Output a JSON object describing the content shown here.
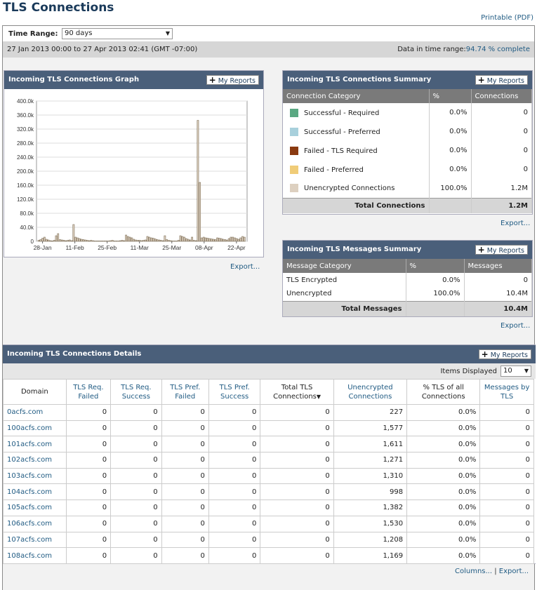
{
  "page": {
    "title": "TLS Connections",
    "printable": "Printable (PDF)"
  },
  "time_range": {
    "label": "Time Range:",
    "value": "90 days",
    "dates": "27 Jan 2013 00:00 to 27 Apr 2013 02:41 (GMT -07:00)",
    "data_label": "Data in time range:",
    "data_value": "94.74 % complete"
  },
  "my_reports": "My Reports",
  "export": "Export...",
  "graph": {
    "title": "Incoming TLS Connections Graph",
    "chart_data": {
      "type": "bar",
      "y_ticks": [
        "400.0k",
        "360.0k",
        "320.0k",
        "280.0k",
        "240.0k",
        "200.0k",
        "160.0k",
        "120.0k",
        "80.0k",
        "40.0k",
        "0"
      ],
      "x_ticks": [
        "28-Jan",
        "11-Feb",
        "25-Feb",
        "11-Mar",
        "25-Mar",
        "08-Apr",
        "22-Apr"
      ],
      "ylim": [
        0,
        400000
      ],
      "values": [
        3000,
        5000,
        9000,
        12000,
        6000,
        4000,
        2000,
        1500,
        3000,
        16000,
        22000,
        5000,
        4000,
        3000,
        2000,
        3000,
        4000,
        2000,
        48000,
        12000,
        10000,
        8000,
        6000,
        5000,
        4000,
        3000,
        2000,
        3000,
        2000,
        1000,
        1000,
        1000,
        1000,
        1000,
        1000,
        1000,
        1000,
        2000,
        3000,
        1000,
        1000,
        1000,
        2000,
        3000,
        2000,
        18000,
        14000,
        12000,
        10000,
        6000,
        4000,
        3000,
        3000,
        2000,
        3000,
        4000,
        14000,
        12000,
        10000,
        9000,
        7000,
        5000,
        4000,
        3000,
        2000,
        16000,
        5000,
        3000,
        2000,
        1000,
        1000,
        1000,
        3000,
        16000,
        14000,
        12000,
        8000,
        6000,
        4000,
        12000,
        3000,
        2000,
        345000,
        168000,
        10000,
        12000,
        10000,
        9000,
        8000,
        7000,
        6000,
        5000,
        10000,
        9000,
        8000,
        6000,
        5000,
        4000,
        8000,
        12000,
        12000,
        10000,
        8000,
        6000,
        10000,
        14000,
        12000
      ]
    }
  },
  "conn_summary": {
    "title": "Incoming TLS Connections Summary",
    "headers": [
      "Connection Category",
      "%",
      "Connections"
    ],
    "rows": [
      {
        "name": "Successful - Required",
        "pct": "0.0%",
        "count": "0",
        "color": "#5aa882"
      },
      {
        "name": "Successful - Preferred",
        "pct": "0.0%",
        "count": "0",
        "color": "#a8d0dc"
      },
      {
        "name": "Failed - TLS Required",
        "pct": "0.0%",
        "count": "0",
        "color": "#8a3a10"
      },
      {
        "name": "Failed - Preferred",
        "pct": "0.0%",
        "count": "0",
        "color": "#f0cc78"
      },
      {
        "name": "Unencrypted Connections",
        "pct": "100.0%",
        "count": "1.2M",
        "color": "#ddd0c0"
      }
    ],
    "total_label": "Total Connections",
    "total_value": "1.2M"
  },
  "msg_summary": {
    "title": "Incoming TLS Messages Summary",
    "headers": [
      "Message Category",
      "%",
      "Messages"
    ],
    "rows": [
      {
        "name": "TLS Encrypted",
        "pct": "0.0%",
        "count": "0"
      },
      {
        "name": "Unencrypted",
        "pct": "100.0%",
        "count": "10.4M"
      }
    ],
    "total_label": "Total Messages",
    "total_value": "10.4M"
  },
  "details": {
    "title": "Incoming TLS Connections Details",
    "items_label": "Items Displayed",
    "items_value": "10",
    "columns": [
      "Domain",
      "TLS Req. Failed",
      "TLS Req. Success",
      "TLS Pref. Failed",
      "TLS Pref. Success",
      "Total TLS Connections",
      "Unencrypted Connections",
      "% TLS of all Connections",
      "Messages by TLS"
    ],
    "rows": [
      [
        "0acfs.com",
        "0",
        "0",
        "0",
        "0",
        "0",
        "227",
        "0.0%",
        "0"
      ],
      [
        "100acfs.com",
        "0",
        "0",
        "0",
        "0",
        "0",
        "1,577",
        "0.0%",
        "0"
      ],
      [
        "101acfs.com",
        "0",
        "0",
        "0",
        "0",
        "0",
        "1,611",
        "0.0%",
        "0"
      ],
      [
        "102acfs.com",
        "0",
        "0",
        "0",
        "0",
        "0",
        "1,271",
        "0.0%",
        "0"
      ],
      [
        "103acfs.com",
        "0",
        "0",
        "0",
        "0",
        "0",
        "1,310",
        "0.0%",
        "0"
      ],
      [
        "104acfs.com",
        "0",
        "0",
        "0",
        "0",
        "0",
        "998",
        "0.0%",
        "0"
      ],
      [
        "105acfs.com",
        "0",
        "0",
        "0",
        "0",
        "0",
        "1,382",
        "0.0%",
        "0"
      ],
      [
        "106acfs.com",
        "0",
        "0",
        "0",
        "0",
        "0",
        "1,530",
        "0.0%",
        "0"
      ],
      [
        "107acfs.com",
        "0",
        "0",
        "0",
        "0",
        "0",
        "1,208",
        "0.0%",
        "0"
      ],
      [
        "108acfs.com",
        "0",
        "0",
        "0",
        "0",
        "0",
        "1,169",
        "0.0%",
        "0"
      ]
    ],
    "columns_link": "Columns...",
    "export_link": "Export..."
  }
}
